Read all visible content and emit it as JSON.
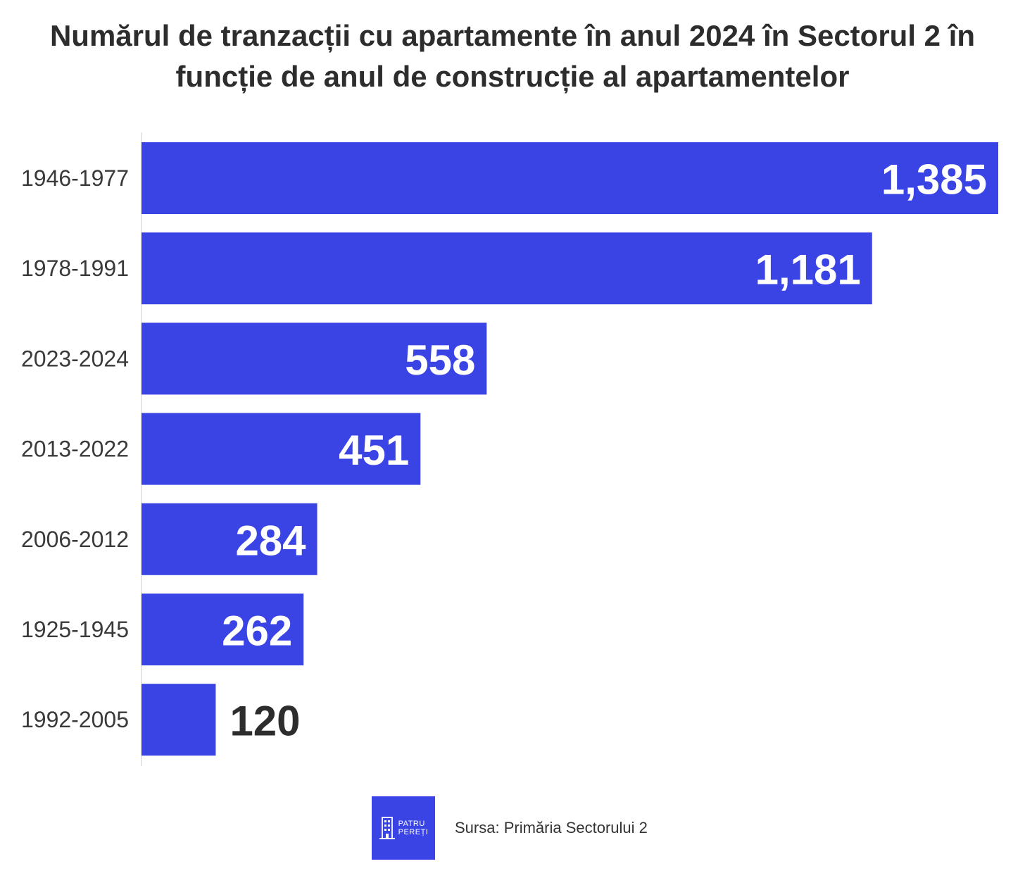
{
  "chart_data": {
    "type": "bar",
    "orientation": "horizontal",
    "title": "Numărul de tranzacții cu apartamente în anul 2024 în Sectorul 2 în funcție de anul de construcție al apartamentelor",
    "categories": [
      "1946-1977",
      "1978-1991",
      "2023-2024",
      "2013-2022",
      "2006-2012",
      "1925-1945",
      "1992-2005"
    ],
    "values": [
      1385,
      1181,
      558,
      451,
      284,
      262,
      120
    ],
    "value_labels": [
      "1,385",
      "1,181",
      "558",
      "451",
      "284",
      "262",
      "120"
    ],
    "xlim": [
      0,
      1385
    ],
    "xlabel": "",
    "ylabel": "",
    "grid": false,
    "legend": "none"
  },
  "colors": {
    "bar": "#3a44e4",
    "label_inside": "#ffffff",
    "label_outside": "#2d2d2d",
    "axis_line": "#e6e6e6"
  },
  "footer": {
    "logo_line1": "PATRU",
    "logo_line2": "PEREȚI",
    "source": "Sursa: Primăria Sectorului 2"
  }
}
